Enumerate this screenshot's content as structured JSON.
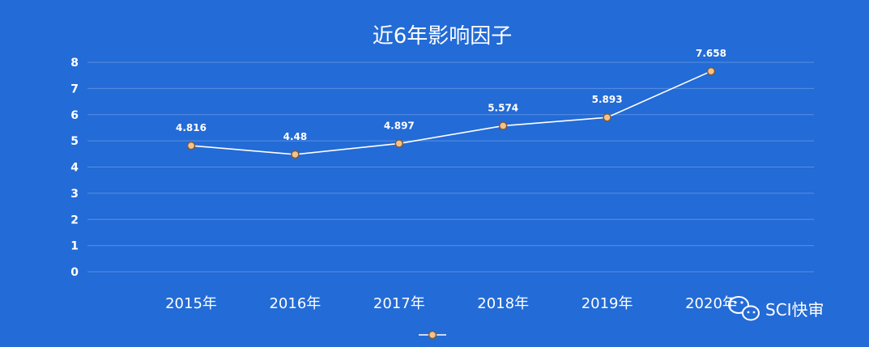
{
  "colors": {
    "background": "#236BD6",
    "line": "#FFFFFF",
    "marker_fill": "#F4C28C",
    "marker_stroke": "#7A5A3A",
    "gridline": "#5A8FE3"
  },
  "watermark": {
    "text": "SCI快审",
    "icon": "wechat-icon"
  },
  "chart_data": {
    "type": "line",
    "title": "近6年影响因子",
    "categories": [
      "2015年",
      "2016年",
      "2017年",
      "2018年",
      "2019年",
      "2020年"
    ],
    "series": [
      {
        "values": [
          4.816,
          4.48,
          4.897,
          5.574,
          5.893,
          7.658
        ]
      }
    ],
    "data_labels": [
      "4.816",
      "4.48",
      "4.897",
      "5.574",
      "5.893",
      "7.658"
    ],
    "yticks": [
      "0",
      "1",
      "2",
      "3",
      "4",
      "5",
      "6",
      "7",
      "8"
    ],
    "ylim": [
      0,
      8
    ],
    "grid": true,
    "legend": "bottom-center"
  }
}
